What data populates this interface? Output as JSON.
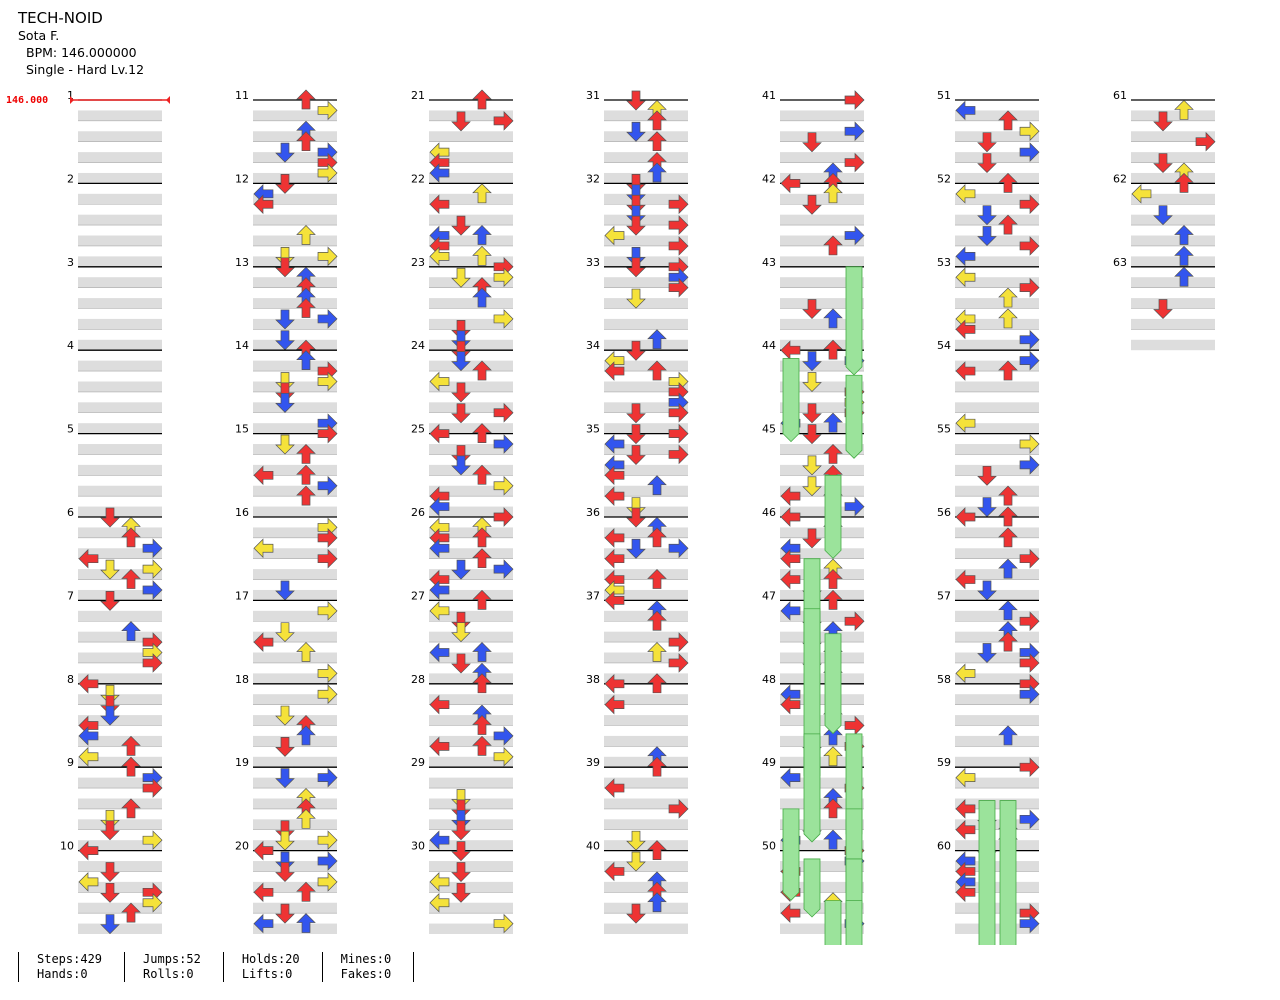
{
  "song": {
    "title": "TECH-NOID",
    "artist": "Sota F.",
    "bpm_label": "BPM: 146.000000",
    "difficulty_label": "Single - Hard  Lv.12",
    "bpm_marker": "146.000"
  },
  "colors": {
    "red": "#ee3333",
    "blue": "#3355ee",
    "yellow": "#f5e23a",
    "green": "#9be39b",
    "band": "#dddddd",
    "bpm_line": "#ee2222"
  },
  "measure_numbers": [
    "1",
    "2",
    "3",
    "4",
    "5",
    "6",
    "7",
    "8",
    "9",
    "10",
    "11",
    "12",
    "13",
    "14",
    "15",
    "16",
    "17",
    "18",
    "19",
    "20",
    "21",
    "22",
    "23",
    "24",
    "25",
    "26",
    "27",
    "28",
    "29",
    "30",
    "31",
    "32",
    "33",
    "34",
    "35",
    "36",
    "37",
    "38",
    "39",
    "40",
    "41",
    "42",
    "43",
    "44",
    "45",
    "46",
    "47",
    "48",
    "49",
    "50",
    "51",
    "52",
    "53",
    "54",
    "55",
    "56",
    "57",
    "58",
    "59",
    "60",
    "61",
    "62",
    "63"
  ],
  "stats": {
    "steps": "Steps:429",
    "hands": "Hands:0",
    "jumps": "Jumps:52",
    "rolls": "Rolls:0",
    "holds": "Holds:20",
    "lifts": "Lifts:0",
    "mines": "Mines:0",
    "fakes": "Fakes:0"
  }
}
